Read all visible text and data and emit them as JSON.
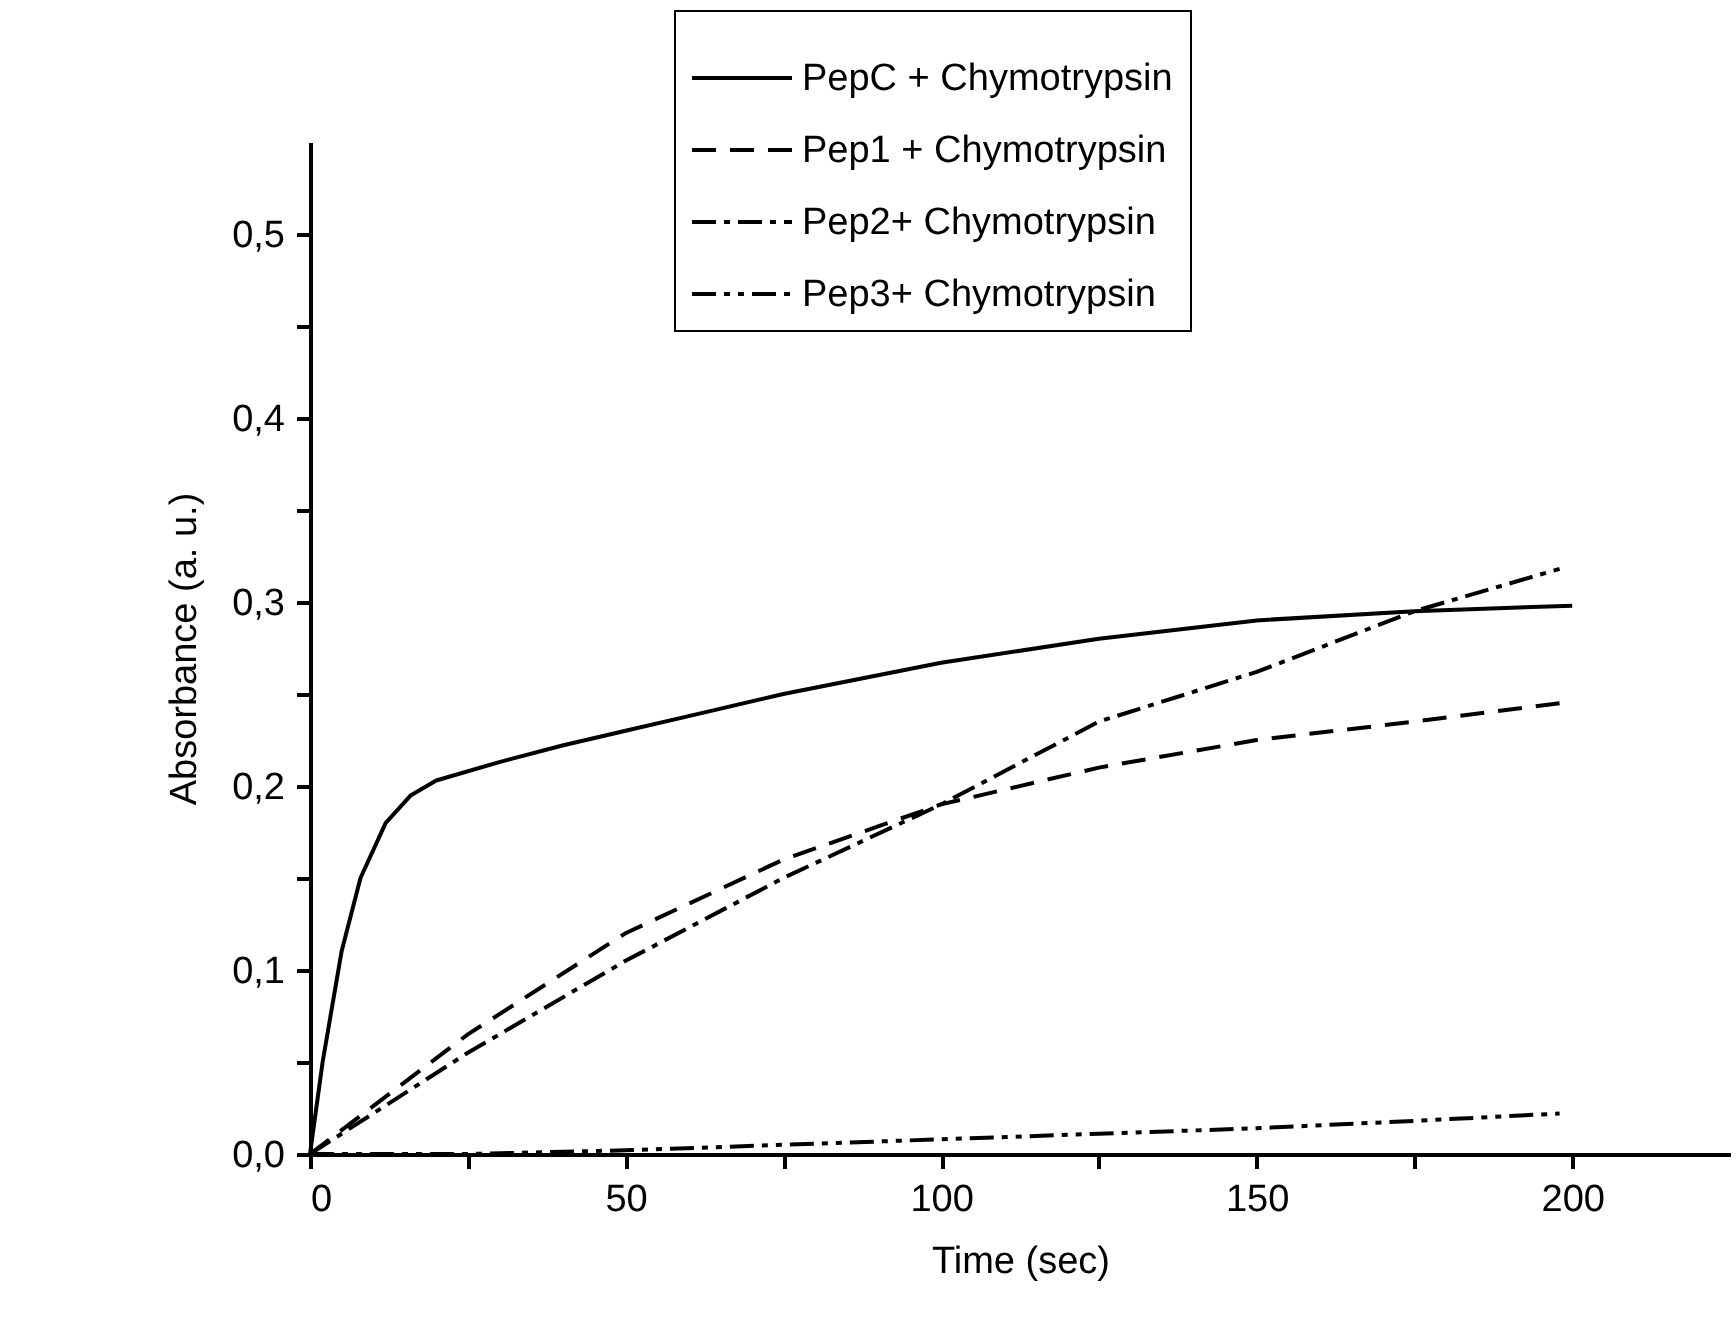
{
  "chart_data": {
    "type": "line",
    "xlabel": "Time (sec)",
    "ylabel": "Absorbance (a. u.)",
    "xlim": [
      0,
      225
    ],
    "ylim": [
      0,
      0.55
    ],
    "xticks": [
      0,
      {
        "value": 25,
        "label": null
      },
      50,
      {
        "value": 75,
        "label": null
      },
      100,
      {
        "value": 125,
        "label": null
      },
      150,
      {
        "value": 175,
        "label": null
      },
      200
    ],
    "yticks": [
      {
        "value": 0,
        "label": "0,0"
      },
      {
        "value": 0.05,
        "label": null
      },
      {
        "value": 0.1,
        "label": "0,1"
      },
      {
        "value": 0.15,
        "label": null
      },
      {
        "value": 0.2,
        "label": "0,2"
      },
      {
        "value": 0.25,
        "label": null
      },
      {
        "value": 0.3,
        "label": "0,3"
      },
      {
        "value": 0.35,
        "label": null
      },
      {
        "value": 0.4,
        "label": "0,4"
      },
      {
        "value": 0.45,
        "label": null
      },
      {
        "value": 0.5,
        "label": "0,5"
      }
    ],
    "legend": "top",
    "grid": false,
    "marker": "none",
    "series": [
      {
        "name": "PepC + Chymotrypsin",
        "color": "#000000",
        "line_style": "solid",
        "x": [
          0,
          2,
          5,
          8,
          12,
          16,
          20,
          30,
          40,
          50,
          60,
          75,
          100,
          125,
          150,
          175,
          200
        ],
        "values": [
          0,
          0.05,
          0.11,
          0.15,
          0.18,
          0.195,
          0.203,
          0.213,
          0.222,
          0.23,
          0.238,
          0.25,
          0.267,
          0.28,
          0.29,
          0.295,
          0.298
        ]
      },
      {
        "name": "Pep1 + Chymotrypsin",
        "color": "#000000",
        "line_style": "dashed",
        "x": [
          0,
          25,
          50,
          75,
          90,
          100,
          125,
          150,
          175,
          198
        ],
        "values": [
          0,
          0.065,
          0.12,
          0.16,
          0.178,
          0.19,
          0.21,
          0.225,
          0.235,
          0.245
        ]
      },
      {
        "name": "Pep2+ Chymotrypsin",
        "color": "#000000",
        "line_style": "dashdot",
        "x": [
          0,
          25,
          50,
          75,
          100,
          125,
          150,
          175,
          198
        ],
        "values": [
          0,
          0.055,
          0.105,
          0.15,
          0.19,
          0.235,
          0.262,
          0.295,
          0.318
        ]
      },
      {
        "name": "Pep3+ Chymotrypsin",
        "color": "#000000",
        "line_style": "dashdotdot",
        "x": [
          0,
          25,
          50,
          75,
          100,
          125,
          150,
          175,
          198
        ],
        "values": [
          0,
          0,
          0.002,
          0.005,
          0.008,
          0.011,
          0.014,
          0.018,
          0.022
        ]
      }
    ]
  }
}
